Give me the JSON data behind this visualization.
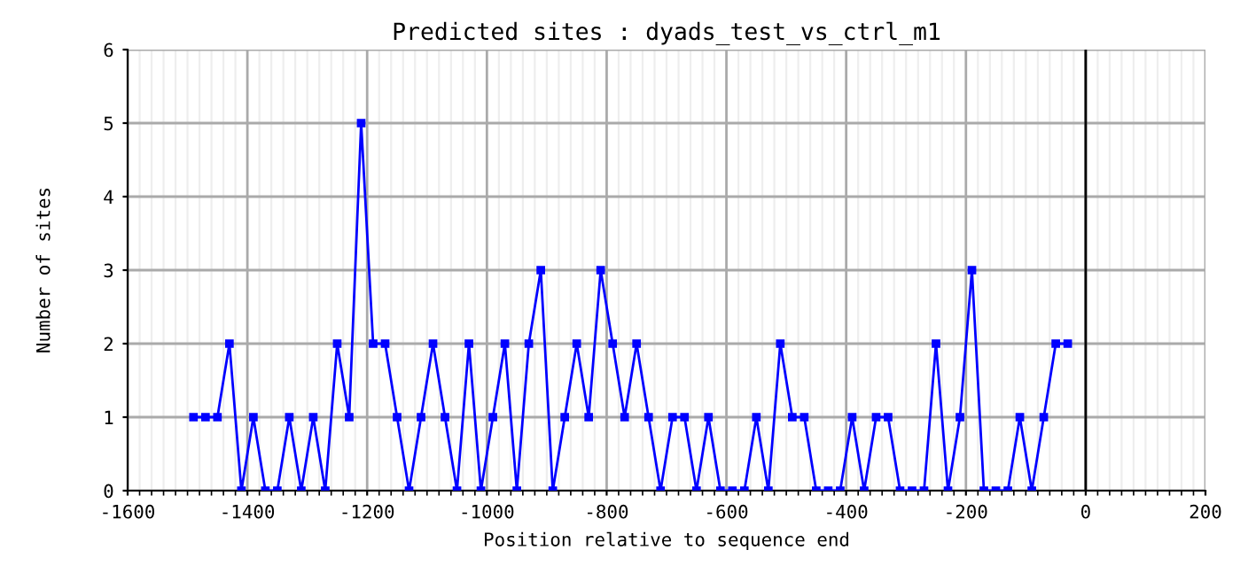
{
  "chart_data": {
    "type": "line",
    "title": "Predicted sites : dyads_test_vs_ctrl_m1",
    "xlabel": "Position relative to sequence end",
    "ylabel": "Number of sites",
    "x": [
      -1490,
      -1470,
      -1450,
      -1430,
      -1410,
      -1390,
      -1370,
      -1350,
      -1330,
      -1310,
      -1290,
      -1270,
      -1250,
      -1230,
      -1210,
      -1190,
      -1170,
      -1150,
      -1130,
      -1110,
      -1090,
      -1070,
      -1050,
      -1030,
      -1010,
      -990,
      -970,
      -950,
      -930,
      -910,
      -890,
      -870,
      -850,
      -830,
      -810,
      -790,
      -770,
      -750,
      -730,
      -710,
      -690,
      -670,
      -650,
      -630,
      -610,
      -590,
      -570,
      -550,
      -530,
      -510,
      -490,
      -470,
      -450,
      -430,
      -410,
      -390,
      -370,
      -350,
      -330,
      -310,
      -290,
      -270,
      -250,
      -230,
      -210,
      -190,
      -170,
      -150,
      -130,
      -110,
      -90,
      -70,
      -50,
      -30
    ],
    "series": [
      {
        "color": "#0000ff",
        "values": [
          1,
          1,
          1,
          2,
          0,
          1,
          0,
          0,
          1,
          0,
          1,
          0,
          2,
          1,
          5,
          2,
          2,
          1,
          0,
          1,
          2,
          1,
          0,
          2,
          0,
          1,
          2,
          0,
          2,
          3,
          0,
          1,
          2,
          1,
          3,
          2,
          1,
          2,
          1,
          0,
          1,
          1,
          0,
          1,
          0,
          0,
          0,
          1,
          0,
          2,
          1,
          1,
          0,
          0,
          0,
          1,
          0,
          1,
          1,
          0,
          0,
          0,
          2,
          0,
          1,
          3,
          0,
          0,
          0,
          1,
          0,
          1,
          2,
          2
        ]
      }
    ],
    "xlim": [
      -1600,
      200
    ],
    "xticks": [
      -1600,
      -1400,
      -1200,
      -1000,
      -800,
      -600,
      -400,
      -200,
      0,
      200
    ],
    "ylim": [
      0,
      6
    ],
    "yticks": [
      0,
      1,
      2,
      3,
      4,
      5,
      6
    ],
    "ref_lines": [
      {
        "axis": "x",
        "value": 0,
        "color": "#000000"
      }
    ],
    "grid": true,
    "marker": "square",
    "line_style": "solid"
  }
}
